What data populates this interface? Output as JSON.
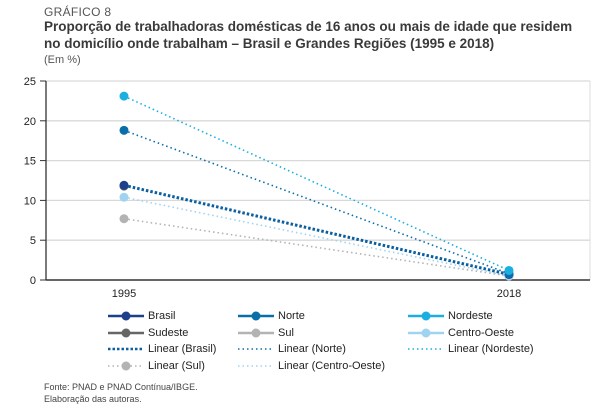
{
  "header": {
    "label": "GRÁFICO 8",
    "title_line1": "Proporção de trabalhadoras domésticas de 16 anos ou mais de idade que residem",
    "title_line2": "no domicílio onde trabalham – Brasil e Grandes Regiões (1995 e 2018)",
    "subtitle": "(Em %)"
  },
  "footer": {
    "source": "Fonte: PNAD e PNAD Contínua/IBGE.",
    "credit": "Elaboração das autoras."
  },
  "chart_data": {
    "type": "scatter",
    "title": "Proporção de trabalhadoras domésticas de 16 anos ou mais de idade que residem no domicílio onde trabalham – Brasil e Grandes Regiões (1995 e 2018)",
    "ylabel": "(Em %)",
    "xlabel": "",
    "categories": [
      "1995",
      "2018"
    ],
    "ylim": [
      0,
      25
    ],
    "yticks": [
      0,
      5,
      10,
      15,
      20,
      25
    ],
    "grid": true,
    "legend_position": "bottom",
    "series": [
      {
        "name": "Brasil",
        "color": "#1d3f8c",
        "values": [
          11.9,
          0.7
        ],
        "trendline": "Linear (Brasil)"
      },
      {
        "name": "Norte",
        "color": "#0a6eab",
        "values": [
          18.8,
          0.8
        ],
        "trendline": "Linear (Norte)"
      },
      {
        "name": "Nordeste",
        "color": "#19afe0",
        "values": [
          23.1,
          1.2
        ],
        "trendline": "Linear (Nordeste)"
      },
      {
        "name": "Sudeste",
        "color": "#666666",
        "values": [
          11.8,
          0.6
        ],
        "trendline": null
      },
      {
        "name": "Sul",
        "color": "#b3b3b3",
        "values": [
          7.7,
          0.5
        ],
        "trendline": "Linear (Sul)"
      },
      {
        "name": "Centro-Oeste",
        "color": "#9fd3f1",
        "values": [
          10.4,
          0.5
        ],
        "trendline": "Linear (Centro-Oeste)"
      }
    ],
    "legend": [
      {
        "label": "Brasil",
        "style": "solid-marker",
        "color": "#1d3f8c"
      },
      {
        "label": "Norte",
        "style": "solid-marker",
        "color": "#0a6eab"
      },
      {
        "label": "Nordeste",
        "style": "solid-marker",
        "color": "#19afe0"
      },
      {
        "label": "Sudeste",
        "style": "solid-marker",
        "color": "#666666"
      },
      {
        "label": "Sul",
        "style": "solid-marker",
        "color": "#b3b3b3"
      },
      {
        "label": "Centro-Oeste",
        "style": "solid-marker",
        "color": "#9fd3f1"
      },
      {
        "label": "Linear (Brasil)",
        "style": "dotted-thick",
        "color": "#0a5fa0"
      },
      {
        "label": "Linear (Norte)",
        "style": "dotted",
        "color": "#0a6eab"
      },
      {
        "label": "Linear (Nordeste)",
        "style": "dotted",
        "color": "#19afe0"
      },
      {
        "label": "Linear (Sul)",
        "style": "dotted-marker",
        "color": "#b3b3b3"
      },
      {
        "label": "Linear (Centro-Oeste)",
        "style": "dotted",
        "color": "#9fd3f1"
      }
    ]
  }
}
